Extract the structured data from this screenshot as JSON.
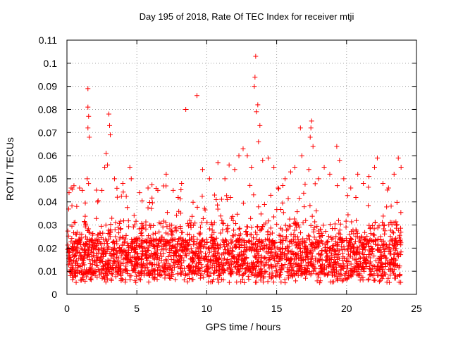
{
  "chart_data": {
    "type": "scatter",
    "title": "Day 195 of 2018, Rate Of TEC Index for receiver mtji",
    "xlabel": "GPS time / hours",
    "ylabel": "ROTI / TECUs",
    "xlim": [
      0,
      25
    ],
    "ylim": [
      0,
      0.11
    ],
    "xticks": [
      "0",
      "5",
      "10",
      "15",
      "20",
      "25"
    ],
    "yticks": [
      "0",
      "0.01",
      "0.02",
      "0.03",
      "0.04",
      "0.05",
      "0.06",
      "0.07",
      "0.08",
      "0.09",
      "0.1",
      "0.11"
    ],
    "grid": true,
    "marker": "+",
    "color": "#ff0000",
    "series": [
      {
        "name": "ROTI",
        "points": [
          [
            0.15,
            0.044
          ],
          [
            0.3,
            0.046
          ],
          [
            0.5,
            0.047
          ],
          [
            0.7,
            0.038
          ],
          [
            0.9,
            0.046
          ],
          [
            1.1,
            0.045
          ],
          [
            1.5,
            0.089
          ],
          [
            1.5,
            0.081
          ],
          [
            1.55,
            0.077
          ],
          [
            1.5,
            0.072
          ],
          [
            1.6,
            0.068
          ],
          [
            1.45,
            0.05
          ],
          [
            2.2,
            0.04
          ],
          [
            2.5,
            0.045
          ],
          [
            2.8,
            0.061
          ],
          [
            2.7,
            0.055
          ],
          [
            3.0,
            0.078
          ],
          [
            3.05,
            0.073
          ],
          [
            3.1,
            0.069
          ],
          [
            2.9,
            0.056
          ],
          [
            3.4,
            0.05
          ],
          [
            3.6,
            0.042
          ],
          [
            4.0,
            0.048
          ],
          [
            4.5,
            0.055
          ],
          [
            4.6,
            0.05
          ],
          [
            5.2,
            0.044
          ],
          [
            5.8,
            0.046
          ],
          [
            6.5,
            0.045
          ],
          [
            7.1,
            0.052
          ],
          [
            7.6,
            0.045
          ],
          [
            8.2,
            0.048
          ],
          [
            8.5,
            0.08
          ],
          [
            9.3,
            0.086
          ],
          [
            9.7,
            0.054
          ],
          [
            10.2,
            0.05
          ],
          [
            10.8,
            0.057
          ],
          [
            11.3,
            0.05
          ],
          [
            11.6,
            0.056
          ],
          [
            12.0,
            0.054
          ],
          [
            12.3,
            0.06
          ],
          [
            12.6,
            0.063
          ],
          [
            12.9,
            0.06
          ],
          [
            13.2,
            0.055
          ],
          [
            13.5,
            0.103
          ],
          [
            13.45,
            0.094
          ],
          [
            13.4,
            0.09
          ],
          [
            13.65,
            0.082
          ],
          [
            13.55,
            0.079
          ],
          [
            13.8,
            0.073
          ],
          [
            13.7,
            0.066
          ],
          [
            14.0,
            0.058
          ],
          [
            14.4,
            0.059
          ],
          [
            14.8,
            0.055
          ],
          [
            15.1,
            0.046
          ],
          [
            15.6,
            0.05
          ],
          [
            16.0,
            0.053
          ],
          [
            16.3,
            0.055
          ],
          [
            16.7,
            0.072
          ],
          [
            16.8,
            0.06
          ],
          [
            17.3,
            0.054
          ],
          [
            17.5,
            0.075
          ],
          [
            17.45,
            0.072
          ],
          [
            17.4,
            0.068
          ],
          [
            17.6,
            0.064
          ],
          [
            18.0,
            0.05
          ],
          [
            18.4,
            0.055
          ],
          [
            18.8,
            0.052
          ],
          [
            19.3,
            0.064
          ],
          [
            19.5,
            0.058
          ],
          [
            19.8,
            0.05
          ],
          [
            20.3,
            0.046
          ],
          [
            20.8,
            0.052
          ],
          [
            21.2,
            0.048
          ],
          [
            21.6,
            0.051
          ],
          [
            22.0,
            0.055
          ],
          [
            22.2,
            0.059
          ],
          [
            22.6,
            0.048
          ],
          [
            23.0,
            0.046
          ],
          [
            23.4,
            0.052
          ],
          [
            23.7,
            0.059
          ],
          [
            23.9,
            0.055
          ]
        ]
      }
    ]
  }
}
